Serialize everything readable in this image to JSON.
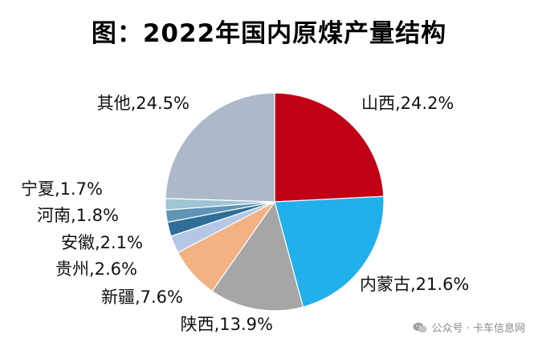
{
  "title": "图：2022年国内原煤产量结构",
  "watermark": "公众号 · 卡车信息网",
  "chart_data": {
    "type": "pie",
    "title": "图：2022年国内原煤产量结构",
    "unit": "%",
    "slices": [
      {
        "name": "山西",
        "value": 24.2,
        "label": "山西,24.2%",
        "color": "#c00014"
      },
      {
        "name": "内蒙古",
        "value": 21.6,
        "label": "内蒙古,21.6%",
        "color": "#21b0ec"
      },
      {
        "name": "陕西",
        "value": 13.9,
        "label": "陕西,13.9%",
        "color": "#a6a6a6"
      },
      {
        "name": "新疆",
        "value": 7.6,
        "label": "新疆,7.6%",
        "color": "#f4b183"
      },
      {
        "name": "贵州",
        "value": 2.6,
        "label": "贵州,2.6%",
        "color": "#b4c7e7"
      },
      {
        "name": "安徽",
        "value": 2.1,
        "label": "安徽,2.1%",
        "color": "#2f6e96"
      },
      {
        "name": "河南",
        "value": 1.8,
        "label": "河南,1.8%",
        "color": "#5f94b4"
      },
      {
        "name": "宁夏",
        "value": 1.7,
        "label": "宁夏,1.7%",
        "color": "#9fc4d4"
      },
      {
        "name": "其他",
        "value": 24.5,
        "label": "其他,24.5%",
        "color": "#adb9ca"
      }
    ]
  }
}
